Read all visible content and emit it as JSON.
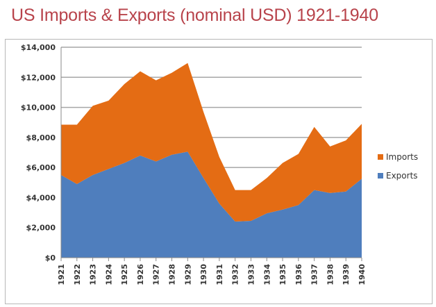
{
  "chart_data": {
    "type": "area",
    "stacked": true,
    "title": "US Imports & Exports (nominal USD) 1921-1940",
    "xlabel": "",
    "ylabel": "",
    "categories": [
      "1921",
      "1922",
      "1923",
      "1924",
      "1925",
      "1926",
      "1927",
      "1928",
      "1929",
      "1930",
      "1931",
      "1932",
      "1933",
      "1934",
      "1935",
      "1936",
      "1937",
      "1938",
      "1939",
      "1940"
    ],
    "series": [
      {
        "name": "Exports",
        "color": "#4f7ebd",
        "values": [
          5500,
          4900,
          5500,
          5900,
          6300,
          6800,
          6400,
          6850,
          7050,
          5300,
          3600,
          2400,
          2450,
          2950,
          3200,
          3500,
          4500,
          4300,
          4400,
          5250
        ]
      },
      {
        "name": "Imports",
        "color": "#e46c14",
        "values": [
          3350,
          3950,
          4600,
          4550,
          5250,
          5600,
          5400,
          5450,
          5900,
          4400,
          3100,
          2100,
          2050,
          2350,
          3100,
          3400,
          4200,
          3100,
          3400,
          3650
        ]
      }
    ],
    "ylim": [
      0,
      14000
    ],
    "yticks": [
      "$0",
      "$2,000",
      "$4,000",
      "$6,000",
      "$8,000",
      "$10,000",
      "$12,000",
      "$14,000"
    ],
    "grid": true,
    "legend": "right"
  }
}
